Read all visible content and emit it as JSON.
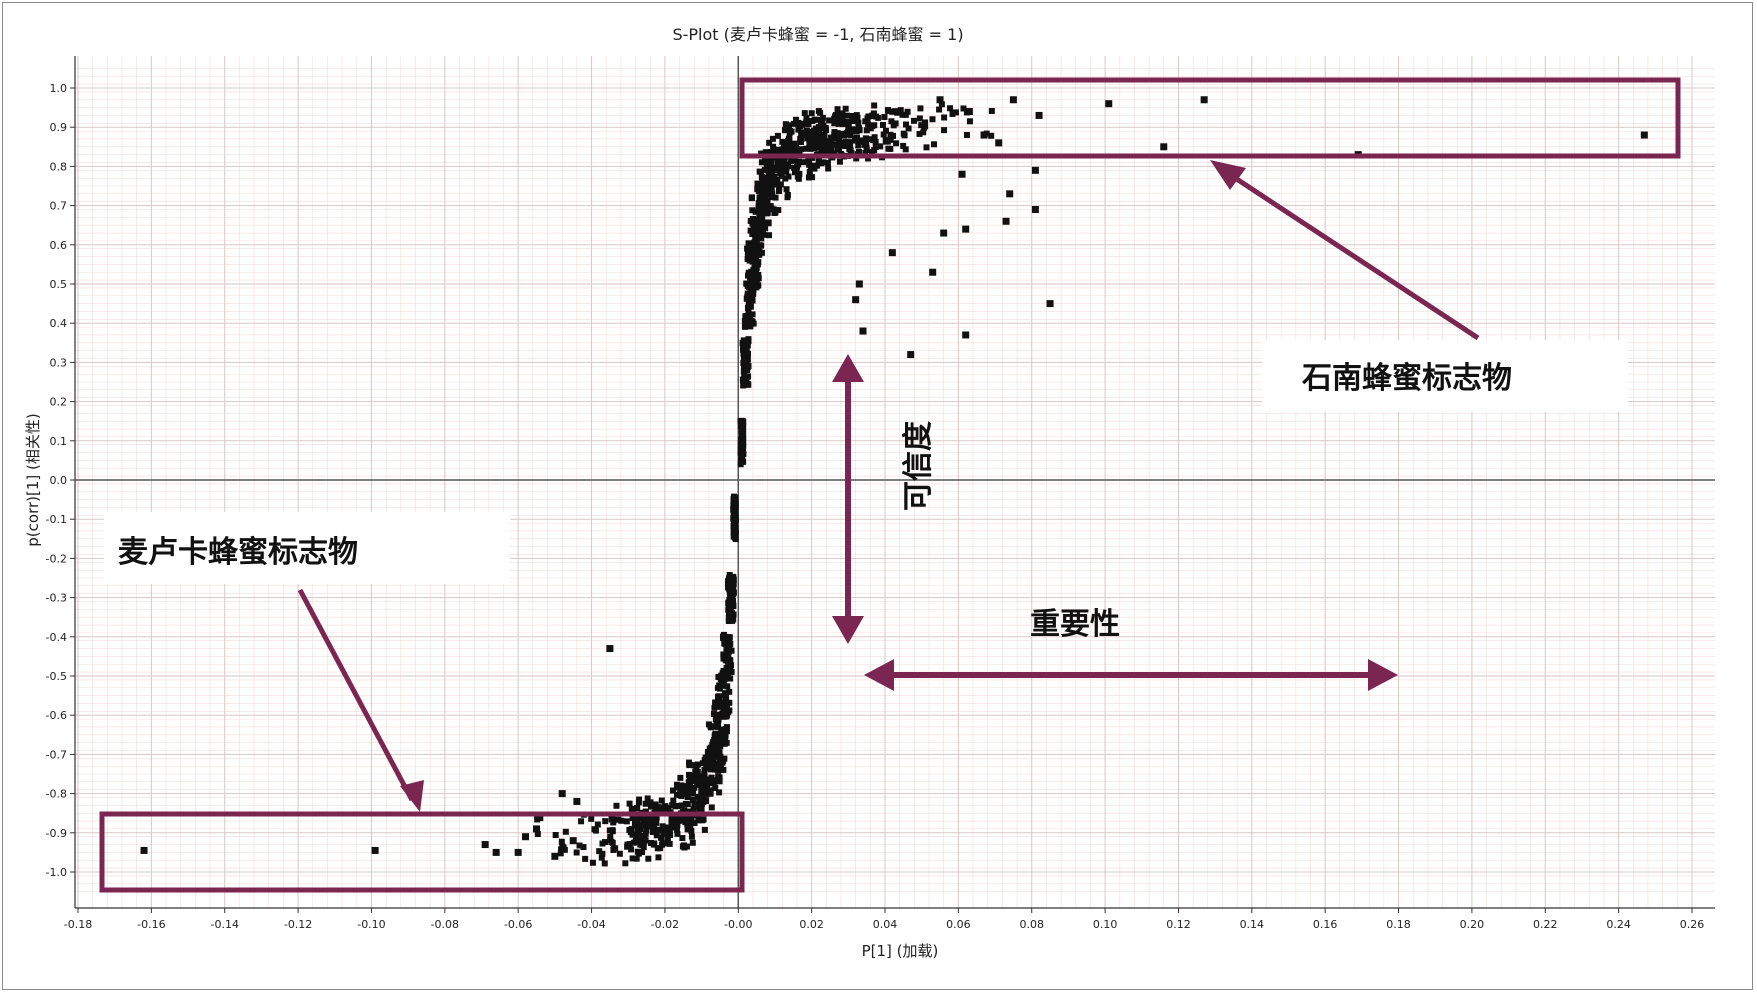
{
  "chart_data": {
    "type": "scatter",
    "title": "S-Plot (麦卢卡蜂蜜 = -1, 石南蜂蜜 = 1)",
    "xlabel": "P[1] (加载)",
    "ylabel": "p(corr)[1] (相关性)",
    "xlim": [
      -0.18,
      0.26
    ],
    "ylim": [
      -1.05,
      1.05
    ],
    "x_ticks": [
      "-0.18",
      "-0.16",
      "-0.14",
      "-0.12",
      "-0.10",
      "-0.08",
      "-0.06",
      "-0.04",
      "-0.02",
      "-0.00",
      "0.02",
      "0.04",
      "0.06",
      "0.08",
      "0.10",
      "0.12",
      "0.14",
      "0.16",
      "0.18",
      "0.20",
      "0.22",
      "0.24",
      "0.26"
    ],
    "y_ticks": [
      "1.0",
      "0.9",
      "0.8",
      "0.7",
      "0.6",
      "0.5",
      "0.4",
      "0.3",
      "0.2",
      "0.1",
      "0.0",
      "-0.1",
      "-0.2",
      "-0.3",
      "-0.4",
      "-0.5",
      "-0.6",
      "-0.7",
      "-0.8",
      "-0.9",
      "-1.0"
    ],
    "grid": true,
    "marker_color": "#111111",
    "annotation_color": "#7a2650",
    "outlier_points": [
      {
        "x": 0.247,
        "y": 0.88
      },
      {
        "x": 0.127,
        "y": 0.97
      },
      {
        "x": 0.116,
        "y": 0.85
      },
      {
        "x": 0.169,
        "y": 0.83
      },
      {
        "x": 0.101,
        "y": 0.96
      },
      {
        "x": 0.082,
        "y": 0.93
      },
      {
        "x": 0.075,
        "y": 0.97
      },
      {
        "x": 0.081,
        "y": 0.79
      },
      {
        "x": 0.081,
        "y": 0.69
      },
      {
        "x": 0.085,
        "y": 0.45
      },
      {
        "x": 0.062,
        "y": 0.37
      },
      {
        "x": 0.047,
        "y": 0.32
      },
      {
        "x": 0.034,
        "y": 0.38
      },
      {
        "x": 0.032,
        "y": 0.46
      },
      {
        "x": 0.033,
        "y": 0.5
      },
      {
        "x": 0.053,
        "y": 0.53
      },
      {
        "x": 0.042,
        "y": 0.58
      },
      {
        "x": 0.062,
        "y": 0.64
      },
      {
        "x": 0.056,
        "y": 0.63
      },
      {
        "x": 0.061,
        "y": 0.78
      },
      {
        "x": 0.074,
        "y": 0.73
      },
      {
        "x": 0.073,
        "y": 0.66
      },
      {
        "x": 0.071,
        "y": 0.86
      },
      {
        "x": 0.067,
        "y": 0.88
      },
      {
        "x": 0.055,
        "y": 0.97
      },
      {
        "x": 0.063,
        "y": 0.94
      },
      {
        "x": -0.162,
        "y": -0.945
      },
      {
        "x": -0.099,
        "y": -0.945
      },
      {
        "x": -0.035,
        "y": -0.43
      },
      {
        "x": -0.069,
        "y": -0.93
      },
      {
        "x": -0.066,
        "y": -0.95
      },
      {
        "x": -0.06,
        "y": -0.95
      },
      {
        "x": -0.058,
        "y": -0.91
      },
      {
        "x": -0.055,
        "y": -0.89
      },
      {
        "x": -0.048,
        "y": -0.8
      },
      {
        "x": -0.044,
        "y": -0.82
      },
      {
        "x": -0.05,
        "y": -0.96
      },
      {
        "x": -0.045,
        "y": -0.92
      }
    ],
    "series": [
      {
        "x": [
          0.001,
          0.002,
          0.003,
          0.004,
          0.005,
          0.006,
          0.008,
          0.01,
          0.012,
          0.015,
          0.018,
          0.02,
          0.022,
          0.025,
          0.028,
          0.03,
          0.033,
          0.036,
          0.04,
          0.045,
          0.05
        ],
        "y": [
          0.1,
          0.3,
          0.45,
          0.55,
          0.62,
          0.68,
          0.74,
          0.78,
          0.81,
          0.83,
          0.85,
          0.86,
          0.87,
          0.87,
          0.88,
          0.88,
          0.89,
          0.89,
          0.89,
          0.9,
          0.9
        ]
      },
      {
        "x": [
          -0.001,
          -0.002,
          -0.003,
          -0.004,
          -0.005,
          -0.006,
          -0.008,
          -0.01,
          -0.012,
          -0.015,
          -0.018,
          -0.02,
          -0.022,
          -0.025,
          -0.03,
          -0.035,
          -0.04
        ],
        "y": [
          -0.1,
          -0.3,
          -0.45,
          -0.55,
          -0.62,
          -0.68,
          -0.74,
          -0.78,
          -0.81,
          -0.84,
          -0.86,
          -0.87,
          -0.88,
          -0.89,
          -0.9,
          -0.91,
          -0.92
        ]
      }
    ]
  },
  "annotations": {
    "heather_label": "石南蜂蜜标志物",
    "manuka_label": "麦卢卡蜂蜜标志物",
    "reliability_label": "可信度",
    "importance_label": "重要性"
  }
}
